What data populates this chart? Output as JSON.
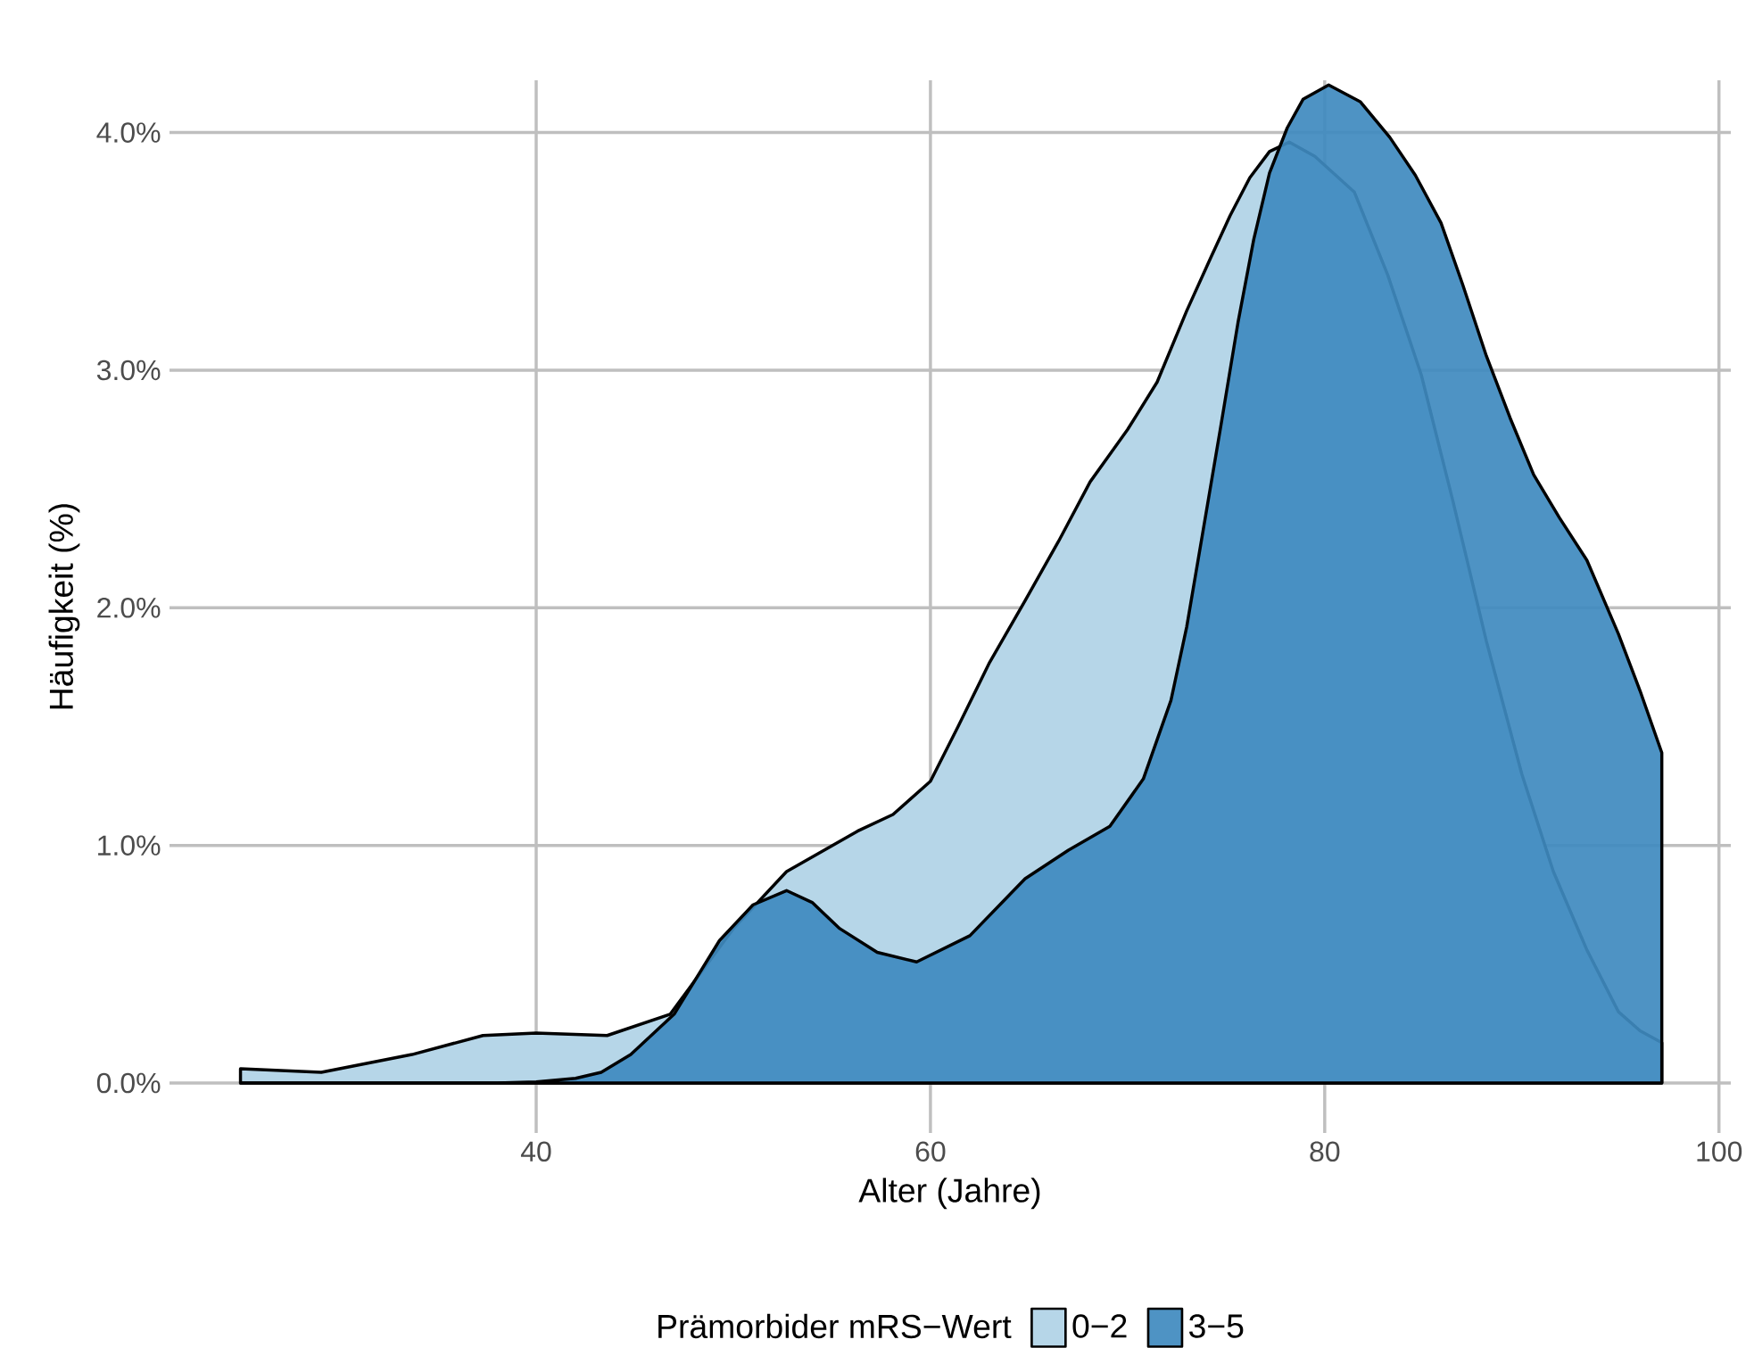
{
  "chart_data": {
    "type": "area",
    "xlabel": "Alter (Jahre)",
    "ylabel": "Häufigkeit (%)",
    "legend_title": "Prämorbider mRS−Wert",
    "legend": "bottom",
    "grid": true,
    "xlim": [
      21.4,
      100.6
    ],
    "ylim": [
      -0.21,
      4.22
    ],
    "xticks": [
      40,
      60,
      80,
      100
    ],
    "yticks": [
      {
        "value": 0,
        "label": "0.0%"
      },
      {
        "value": 1,
        "label": "1.0%"
      },
      {
        "value": 2,
        "label": "2.0%"
      },
      {
        "value": 3,
        "label": "3.0%"
      },
      {
        "value": 4,
        "label": "4.0%"
      }
    ],
    "series": [
      {
        "name": "0−2",
        "color": "#b6d6e8",
        "x": [
          25,
          29.1,
          33.7,
          37.3,
          40,
          43.6,
          46.8,
          50,
          52.7,
          56.3,
          58.1,
          60,
          61.4,
          63,
          64.8,
          66.5,
          68.1,
          70,
          71.5,
          73,
          74.2,
          75.2,
          76.2,
          77.2,
          78.2,
          79.5,
          81.5,
          83.2,
          84.9,
          86.5,
          88.2,
          90,
          91.6,
          93.3,
          94.9,
          96,
          97.1
        ],
        "values": [
          0.06,
          0.045,
          0.12,
          0.2,
          0.21,
          0.2,
          0.29,
          0.65,
          0.89,
          1.06,
          1.13,
          1.27,
          1.5,
          1.77,
          2.03,
          2.28,
          2.53,
          2.75,
          2.95,
          3.25,
          3.47,
          3.65,
          3.81,
          3.92,
          3.96,
          3.9,
          3.75,
          3.4,
          2.98,
          2.45,
          1.86,
          1.3,
          0.89,
          0.56,
          0.3,
          0.22,
          0.17
        ]
      },
      {
        "name": "3−5",
        "color": "#3f8abf",
        "x": [
          25,
          30,
          35,
          38,
          40,
          42,
          43.3,
          44.8,
          47,
          49.3,
          51,
          52.7,
          54,
          55.4,
          57.3,
          59.3,
          62,
          64.8,
          67,
          69.1,
          70.8,
          72.2,
          73,
          73.8,
          74.7,
          75.6,
          76.4,
          77.2,
          78.1,
          78.9,
          80.2,
          81.8,
          83.3,
          84.6,
          85.9,
          87,
          88.2,
          89.4,
          90.6,
          91.9,
          93.3,
          94.9,
          96,
          97.1
        ],
        "values": [
          0,
          0,
          0,
          0,
          0.005,
          0.02,
          0.045,
          0.12,
          0.29,
          0.6,
          0.75,
          0.81,
          0.76,
          0.65,
          0.55,
          0.51,
          0.62,
          0.86,
          0.98,
          1.08,
          1.28,
          1.61,
          1.92,
          2.31,
          2.75,
          3.2,
          3.55,
          3.83,
          4.02,
          4.14,
          4.2,
          4.13,
          3.98,
          3.82,
          3.62,
          3.36,
          3.06,
          2.8,
          2.56,
          2.38,
          2.2,
          1.89,
          1.65,
          1.39
        ]
      }
    ]
  }
}
